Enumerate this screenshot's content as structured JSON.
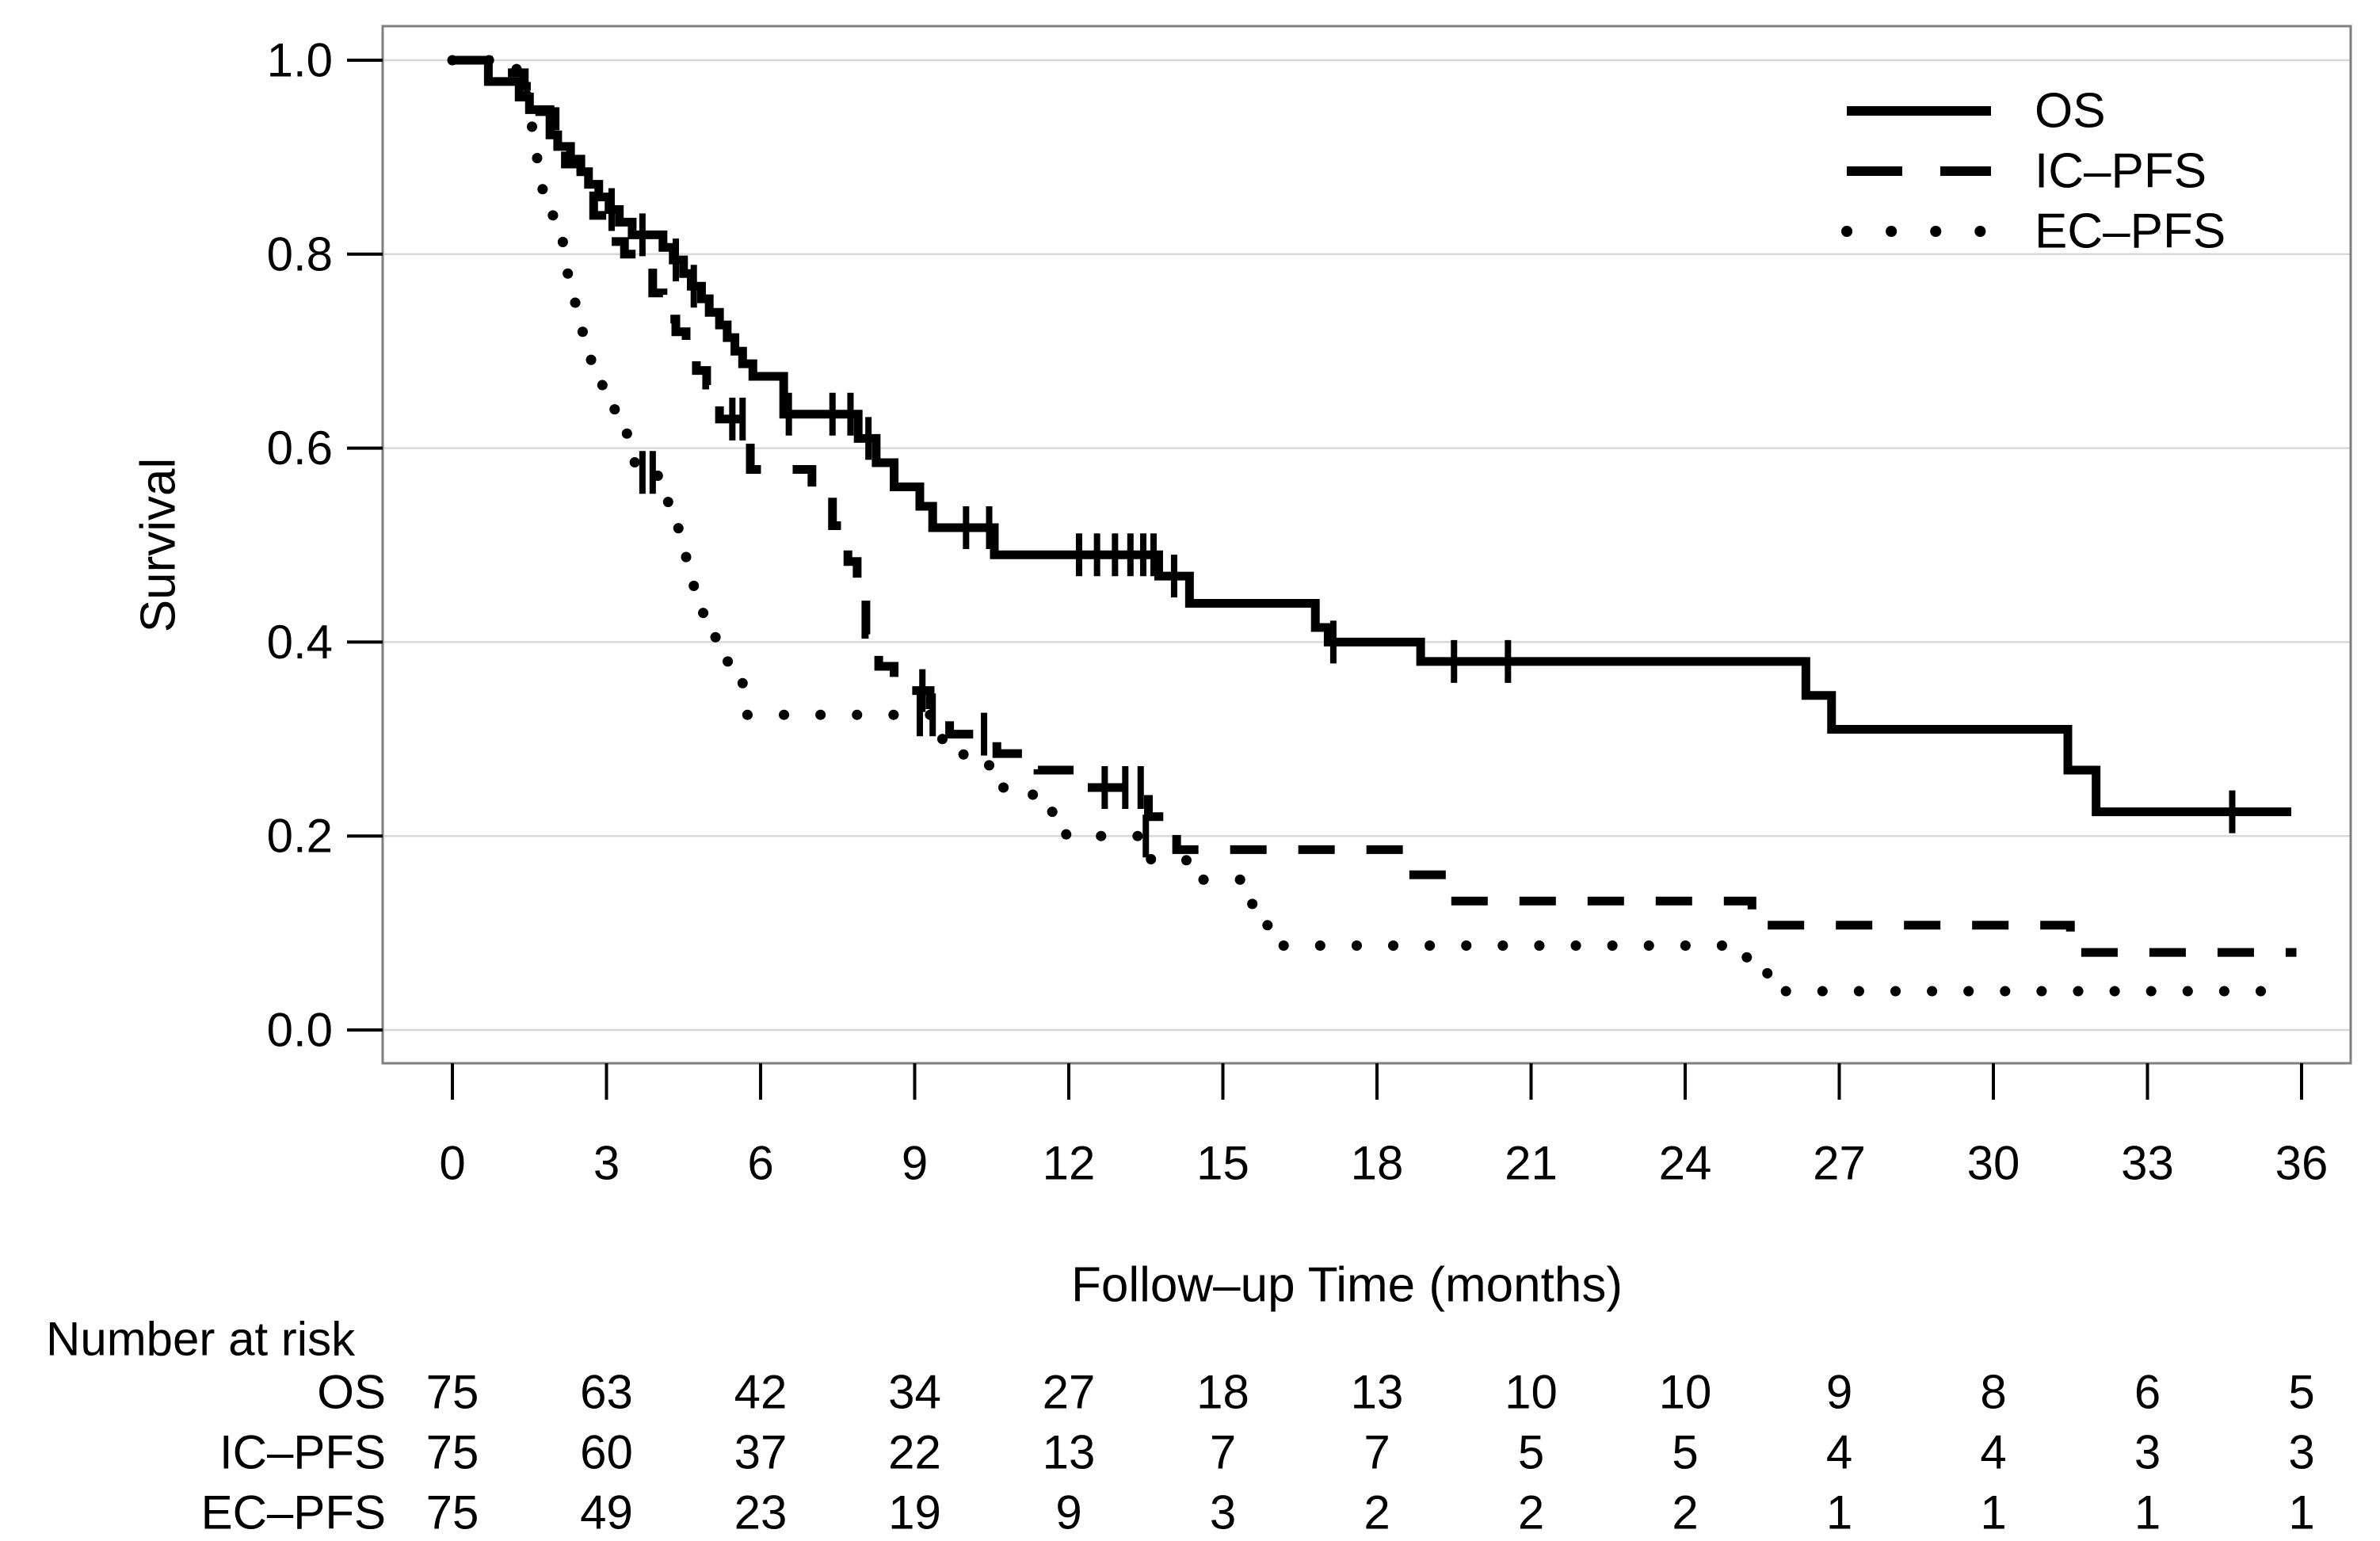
{
  "chart_data": {
    "type": "line",
    "subtype": "kaplan-meier-step",
    "title": "",
    "xlabel": "Follow–up Time (months)",
    "ylabel": "Survival",
    "xlim": [
      0,
      36
    ],
    "ylim": [
      0.0,
      1.0
    ],
    "xticks": [
      0,
      3,
      6,
      9,
      12,
      15,
      18,
      21,
      24,
      27,
      30,
      33,
      36
    ],
    "ytick_labels": [
      "1.0",
      "0.8",
      "0.6",
      "0.4",
      "0.2",
      "0.0"
    ],
    "ytick_values": [
      1.0,
      0.8,
      0.6,
      0.4,
      0.2,
      0.0
    ],
    "grid": true,
    "legend_position": "top-right",
    "legend": [
      {
        "label": "OS",
        "style": "solid"
      },
      {
        "label": "IC–PFS",
        "style": "dashed"
      },
      {
        "label": "EC–PFS",
        "style": "dotted"
      }
    ],
    "series": [
      {
        "name": "OS",
        "style": "solid",
        "end": 35.8,
        "points": [
          [
            0,
            1.0
          ],
          [
            0.7,
            0.978
          ],
          [
            1.3,
            0.962
          ],
          [
            1.5,
            0.949
          ],
          [
            1.9,
            0.923
          ],
          [
            2.05,
            0.911
          ],
          [
            2.3,
            0.898
          ],
          [
            2.5,
            0.885
          ],
          [
            2.65,
            0.872
          ],
          [
            2.85,
            0.859
          ],
          [
            3.05,
            0.846
          ],
          [
            3.25,
            0.833
          ],
          [
            3.5,
            0.82
          ],
          [
            4.1,
            0.807
          ],
          [
            4.3,
            0.794
          ],
          [
            4.5,
            0.78
          ],
          [
            4.65,
            0.767
          ],
          [
            4.85,
            0.754
          ],
          [
            5.0,
            0.74
          ],
          [
            5.2,
            0.727
          ],
          [
            5.35,
            0.714
          ],
          [
            5.5,
            0.7
          ],
          [
            5.65,
            0.687
          ],
          [
            5.85,
            0.674
          ],
          [
            6.45,
            0.635
          ],
          [
            7.9,
            0.61
          ],
          [
            8.25,
            0.585
          ],
          [
            8.6,
            0.56
          ],
          [
            9.1,
            0.54
          ],
          [
            9.35,
            0.518
          ],
          [
            10.55,
            0.49
          ],
          [
            13.75,
            0.468
          ],
          [
            14.35,
            0.44
          ],
          [
            16.8,
            0.415
          ],
          [
            17.05,
            0.4
          ],
          [
            18.85,
            0.38
          ],
          [
            26.35,
            0.345
          ],
          [
            26.85,
            0.31
          ],
          [
            31.45,
            0.268
          ],
          [
            32.0,
            0.225
          ]
        ],
        "censors": [
          3.1,
          3.7,
          4.35,
          4.7,
          6.55,
          7.4,
          7.75,
          8.1,
          10.0,
          10.45,
          12.2,
          12.55,
          12.9,
          13.2,
          13.45,
          13.65,
          14.05,
          17.15,
          19.5,
          20.55,
          34.65
        ]
      },
      {
        "name": "IC–PFS",
        "style": "dashed",
        "end": 35.9,
        "points": [
          [
            0,
            1.0
          ],
          [
            1.0,
            0.987
          ],
          [
            1.4,
            0.973
          ],
          [
            1.7,
            0.947
          ],
          [
            2.0,
            0.92
          ],
          [
            2.2,
            0.893
          ],
          [
            2.5,
            0.867
          ],
          [
            2.75,
            0.84
          ],
          [
            3.0,
            0.813
          ],
          [
            3.35,
            0.8
          ],
          [
            3.6,
            0.787
          ],
          [
            3.9,
            0.76
          ],
          [
            4.1,
            0.733
          ],
          [
            4.35,
            0.72
          ],
          [
            4.55,
            0.7
          ],
          [
            4.75,
            0.68
          ],
          [
            4.95,
            0.665
          ],
          [
            5.2,
            0.63
          ],
          [
            5.8,
            0.578
          ],
          [
            7.0,
            0.556
          ],
          [
            7.4,
            0.52
          ],
          [
            7.7,
            0.483
          ],
          [
            7.88,
            0.445
          ],
          [
            8.05,
            0.408
          ],
          [
            8.3,
            0.375
          ],
          [
            8.6,
            0.35
          ],
          [
            9.3,
            0.33
          ],
          [
            9.68,
            0.305
          ],
          [
            10.6,
            0.285
          ],
          [
            11.4,
            0.268
          ],
          [
            12.2,
            0.25
          ],
          [
            13.55,
            0.22
          ],
          [
            14.1,
            0.186
          ],
          [
            18.55,
            0.16
          ],
          [
            19.4,
            0.133
          ],
          [
            25.3,
            0.108
          ],
          [
            31.5,
            0.08
          ]
        ],
        "censors": [
          5.45,
          5.65,
          9.15,
          10.35,
          12.7,
          13.1,
          13.4
        ]
      },
      {
        "name": "EC–PFS",
        "style": "dotted",
        "end": 35.8,
        "points": [
          [
            0,
            1.0
          ],
          [
            1.25,
            0.973
          ],
          [
            1.45,
            0.947
          ],
          [
            1.55,
            0.92
          ],
          [
            1.65,
            0.893
          ],
          [
            1.75,
            0.867
          ],
          [
            1.85,
            0.84
          ],
          [
            2.0,
            0.813
          ],
          [
            2.15,
            0.78
          ],
          [
            2.3,
            0.75
          ],
          [
            2.5,
            0.72
          ],
          [
            2.7,
            0.69
          ],
          [
            2.85,
            0.665
          ],
          [
            3.0,
            0.64
          ],
          [
            3.2,
            0.615
          ],
          [
            3.4,
            0.595
          ],
          [
            3.55,
            0.575
          ],
          [
            4.0,
            0.55
          ],
          [
            4.2,
            0.525
          ],
          [
            4.4,
            0.5
          ],
          [
            4.55,
            0.478
          ],
          [
            4.7,
            0.455
          ],
          [
            4.85,
            0.43
          ],
          [
            5.05,
            0.405
          ],
          [
            5.3,
            0.38
          ],
          [
            5.65,
            0.325
          ],
          [
            8.95,
            0.325
          ],
          [
            9.45,
            0.3
          ],
          [
            9.95,
            0.275
          ],
          [
            10.45,
            0.25
          ],
          [
            11.3,
            0.225
          ],
          [
            11.95,
            0.2
          ],
          [
            13.6,
            0.175
          ],
          [
            14.5,
            0.155
          ],
          [
            15.45,
            0.13
          ],
          [
            15.75,
            0.108
          ],
          [
            16.1,
            0.087
          ],
          [
            25.2,
            0.065
          ],
          [
            25.6,
            0.04
          ]
        ],
        "censors": [
          3.7,
          3.9,
          9.1,
          9.35,
          13.5
        ]
      }
    ],
    "risk_table": {
      "title": "Number at risk",
      "times": [
        0,
        3,
        6,
        9,
        12,
        15,
        18,
        21,
        24,
        27,
        30,
        33,
        36
      ],
      "rows": [
        {
          "name": "OS",
          "counts": [
            75,
            63,
            42,
            34,
            27,
            18,
            13,
            10,
            10,
            9,
            8,
            6,
            5
          ]
        },
        {
          "name": "IC–PFS",
          "counts": [
            75,
            60,
            37,
            22,
            13,
            7,
            7,
            5,
            5,
            4,
            4,
            3,
            3
          ]
        },
        {
          "name": "EC–PFS",
          "counts": [
            75,
            49,
            23,
            19,
            9,
            3,
            2,
            2,
            2,
            1,
            1,
            1,
            1
          ]
        }
      ]
    },
    "colors": {
      "curve": "#000000",
      "grid": "#d9d9d9",
      "box": "#7f7f7f",
      "text": "#000000",
      "background": "#ffffff"
    }
  }
}
